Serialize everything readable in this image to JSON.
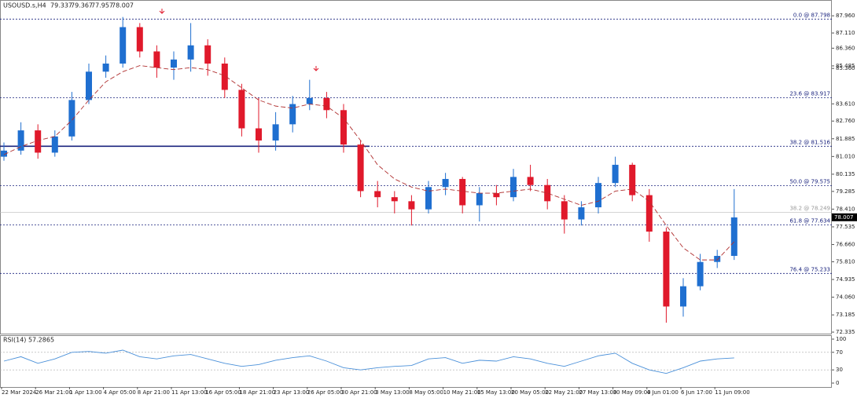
{
  "chart_data": [
    {
      "type": "candlestick",
      "symbol": "USOUSD.s,H4",
      "header_ohlc": [
        79.337,
        79.367,
        77.957,
        78.007
      ],
      "up_color": "#1f6fd0",
      "down_color": "#e0192b",
      "open": [
        81.0,
        81.3,
        82.3,
        81.2,
        82.0,
        83.8,
        85.2,
        85.6,
        87.4,
        86.2,
        85.4,
        85.8,
        86.5,
        85.6,
        84.3,
        82.4,
        81.8,
        82.6,
        83.6,
        83.9,
        83.3,
        81.6,
        79.3,
        79.0,
        78.8,
        78.4,
        79.5,
        79.9,
        78.6,
        79.2,
        79.0,
        80.0,
        79.6,
        78.8,
        77.9,
        78.5,
        79.7,
        80.6,
        79.1,
        77.3,
        73.6,
        74.6,
        75.8,
        76.1
      ],
      "high": [
        81.7,
        82.7,
        82.6,
        82.3,
        84.2,
        85.6,
        86.0,
        87.9,
        87.6,
        86.5,
        86.2,
        87.6,
        86.8,
        85.9,
        84.6,
        83.9,
        83.2,
        84.0,
        84.8,
        84.2,
        83.6,
        81.8,
        79.8,
        79.3,
        79.1,
        79.8,
        80.2,
        80.0,
        79.5,
        79.6,
        80.4,
        80.6,
        79.9,
        79.1,
        78.8,
        80.0,
        81.0,
        80.7,
        79.4,
        77.5,
        75.0,
        76.2,
        76.4,
        79.4
      ],
      "low": [
        80.8,
        81.1,
        80.9,
        81.0,
        81.8,
        83.6,
        84.9,
        85.4,
        85.9,
        84.9,
        84.8,
        85.2,
        85.0,
        83.9,
        82.0,
        81.2,
        81.3,
        82.2,
        83.3,
        82.9,
        81.2,
        79.0,
        78.5,
        78.2,
        77.6,
        78.2,
        79.1,
        78.2,
        77.8,
        78.6,
        78.8,
        79.3,
        78.4,
        77.2,
        77.6,
        78.2,
        79.5,
        78.8,
        76.8,
        72.8,
        73.1,
        74.4,
        75.5,
        75.9
      ],
      "close": [
        81.3,
        82.3,
        81.2,
        82.0,
        83.8,
        85.2,
        85.6,
        87.4,
        86.2,
        85.4,
        85.8,
        86.5,
        85.6,
        84.3,
        82.4,
        81.8,
        82.6,
        83.6,
        83.9,
        83.3,
        81.6,
        79.3,
        79.0,
        78.8,
        78.4,
        79.5,
        79.9,
        78.6,
        79.2,
        79.0,
        80.0,
        79.6,
        78.8,
        77.9,
        78.5,
        79.7,
        80.6,
        79.1,
        77.3,
        73.6,
        74.6,
        75.8,
        76.1,
        78.0
      ],
      "ma": {
        "color": "#b03030",
        "values": [
          81.1,
          81.5,
          81.8,
          82.0,
          82.8,
          83.8,
          84.7,
          85.2,
          85.5,
          85.4,
          85.3,
          85.4,
          85.3,
          85.0,
          84.4,
          83.8,
          83.5,
          83.4,
          83.6,
          83.5,
          82.9,
          81.8,
          80.6,
          79.9,
          79.5,
          79.3,
          79.4,
          79.3,
          79.2,
          79.2,
          79.3,
          79.4,
          79.2,
          78.9,
          78.6,
          78.8,
          79.3,
          79.4,
          78.8,
          77.6,
          76.5,
          75.9,
          75.9,
          76.8
        ]
      },
      "ylim": [
        72.26,
        88.74
      ],
      "yticks": [
        {
          "value": 87.96,
          "label": "87.960"
        },
        {
          "value": 87.11,
          "label": "87.110"
        },
        {
          "value": 86.36,
          "label": "86.360"
        },
        {
          "value": 85.36,
          "label": "85.360"
        },
        85.485,
        {
          "value": 83.61,
          "label": "83.610"
        },
        {
          "value": 82.76,
          "label": "82.760"
        },
        81.885,
        {
          "value": 81.01,
          "label": "81.010"
        },
        80.135,
        79.285,
        {
          "value": 78.41,
          "label": "78.410"
        },
        77.535,
        {
          "value": 76.66,
          "label": "76.660"
        },
        {
          "value": 75.81,
          "label": "75.810"
        },
        74.935,
        {
          "value": 74.06,
          "label": "74.060"
        },
        73.185,
        72.335
      ],
      "fib_levels": [
        {
          "value": 87.798,
          "label": "0.0 @ 87.798"
        },
        {
          "value": 83.917,
          "label": "23.6 @ 83.917"
        },
        {
          "value": 81.516,
          "label": "38.2 @ 81.516"
        },
        {
          "value": 79.575,
          "label": "50.0 @ 79.575"
        },
        {
          "value": 77.634,
          "label": "61.8 @ 77.634"
        },
        {
          "value": 75.233,
          "label": "76.4 @ 75.233"
        }
      ],
      "secondary_level": {
        "value": 78.249,
        "label": "38.2 @ 78.249"
      },
      "last_price": 78.007,
      "x_labels": [
        {
          "value": 0,
          "label": "22 Mar 2024"
        },
        {
          "value": 2,
          "label": "26 Mar 21:00"
        },
        {
          "value": 4,
          "label": "1 Apr 13:00"
        },
        {
          "value": 6,
          "label": "4 Apr 05:00"
        },
        {
          "value": 8,
          "label": "8 Apr 21:00"
        },
        {
          "value": 10,
          "label": "11 Apr 13:00"
        },
        {
          "value": 12,
          "label": "16 Apr 05:00"
        },
        {
          "value": 14,
          "label": "18 Apr 21:00"
        },
        {
          "value": 16,
          "label": "23 Apr 13:00"
        },
        {
          "value": 18,
          "label": "26 Apr 05:00"
        },
        {
          "value": 20,
          "label": "30 Apr 21:00"
        },
        {
          "value": 22,
          "label": "3 May 13:00"
        },
        {
          "value": 24,
          "label": "8 May 05:00"
        },
        {
          "value": 26,
          "label": "10 May 21:00"
        },
        {
          "value": 28,
          "label": "15 May 13:00"
        },
        {
          "value": 30,
          "label": "20 May 05:00"
        },
        {
          "value": 32,
          "label": "22 May 21:00"
        },
        {
          "value": 34,
          "label": "27 May 13:00"
        },
        {
          "value": 36,
          "label": "30 May 09:00"
        },
        {
          "value": 38,
          "label": "4 Jun 01:00"
        },
        {
          "value": 40,
          "label": "6 Jun 17:00"
        },
        {
          "value": 42,
          "label": "11 Jun 09:00"
        }
      ]
    },
    {
      "type": "line",
      "title": "RSI(14) 57.2865",
      "color": "#4a90d9",
      "values": [
        50,
        60,
        45,
        55,
        70,
        72,
        68,
        75,
        60,
        55,
        62,
        65,
        55,
        45,
        38,
        42,
        52,
        58,
        62,
        50,
        35,
        30,
        35,
        38,
        40,
        55,
        58,
        45,
        52,
        50,
        60,
        55,
        45,
        38,
        50,
        62,
        68,
        45,
        30,
        22,
        35,
        50,
        55,
        57.2865
      ],
      "ylim": [
        0,
        100
      ],
      "yticks": [
        100,
        70,
        30,
        0
      ],
      "levels": [
        70,
        30
      ]
    }
  ]
}
